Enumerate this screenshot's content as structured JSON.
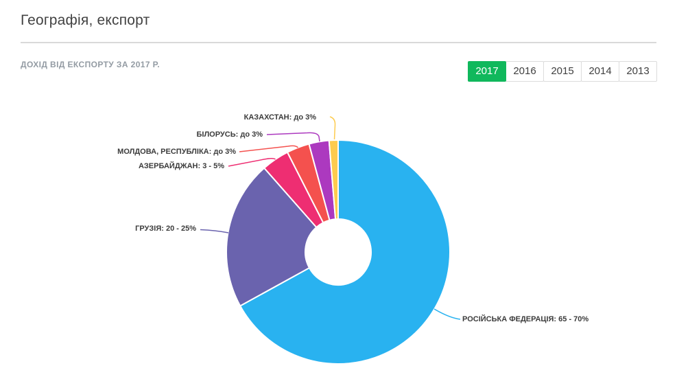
{
  "header": {
    "title": "Географія, експорт",
    "subtitle": "ДОХІД ВІД ЕКСПОРТУ ЗА 2017 Р."
  },
  "year_tabs": {
    "active": "2017",
    "active_color": "#10B85C",
    "items": [
      "2017",
      "2016",
      "2015",
      "2014",
      "2013"
    ]
  },
  "chart_data": {
    "type": "pie",
    "subtype": "donut",
    "start_angle_deg": 0,
    "direction": "clockwise",
    "legend": false,
    "separator_color": "#FFFFFF",
    "slices": [
      {
        "key": "russian-federation",
        "name": "РОСІЙСЬКА ФЕДЕРАЦІЯ",
        "share": "65 - 70%",
        "label_text": "РОСІЙСЬКА ФЕДЕРАЦІЯ: 65 - 70%",
        "value": 67.0,
        "color": "#29B2F0"
      },
      {
        "key": "georgia",
        "name": "ГРУЗІЯ",
        "share": "20 - 25%",
        "label_text": "ГРУЗІЯ: 20 - 25%",
        "value": 21.5,
        "color": "#6A63AE"
      },
      {
        "key": "azerbaijan",
        "name": "АЗЕРБАЙДЖАН",
        "share": "3 - 5%",
        "label_text": "АЗЕРБАЙДЖАН: 3 - 5%",
        "value": 4.0,
        "color": "#EE2E72"
      },
      {
        "key": "moldova",
        "name": "МОЛДОВА, РЕСПУБЛІКА",
        "share": "до 3%",
        "label_text": "МОЛДОВА, РЕСПУБЛІКА: до 3%",
        "value": 3.3,
        "color": "#F4514E"
      },
      {
        "key": "belarus",
        "name": "БІЛОРУСЬ",
        "share": "до 3%",
        "label_text": "БІЛОРУСЬ: до 3%",
        "value": 2.9,
        "color": "#AC39BF"
      },
      {
        "key": "kazakhstan",
        "name": "КАЗАХСТАН",
        "share": "до 3%",
        "label_text": "КАЗАХСТАН: до 3%",
        "value": 1.3,
        "color": "#FDCB4E"
      }
    ]
  }
}
